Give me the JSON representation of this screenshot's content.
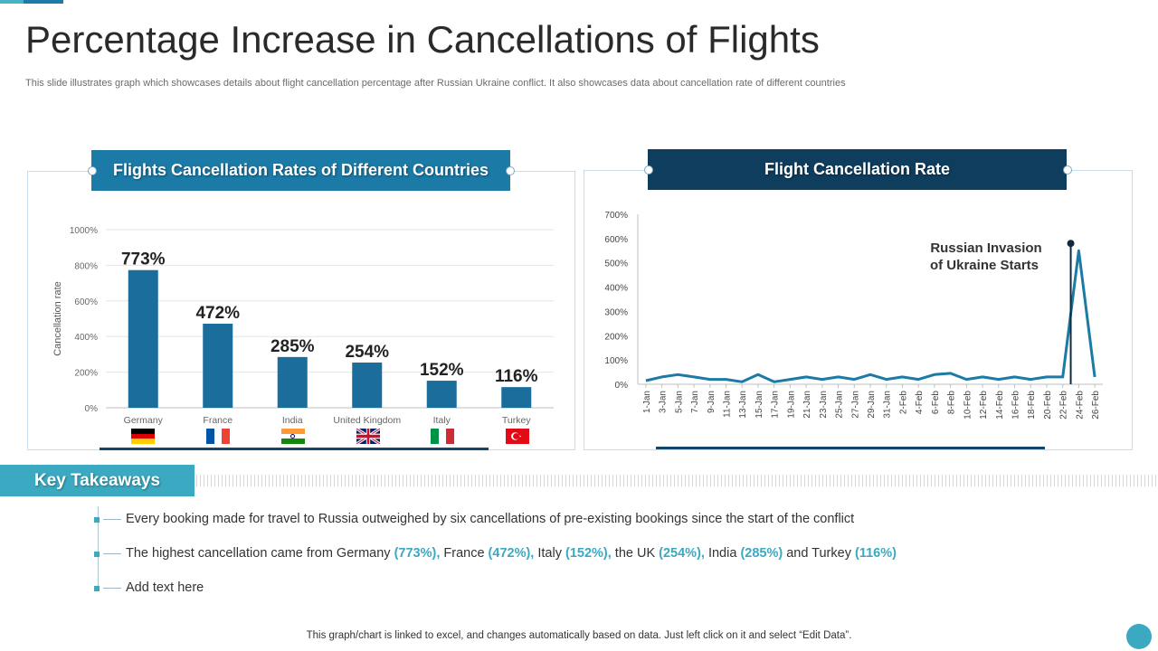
{
  "title": "Percentage Increase in Cancellations of Flights",
  "subtitle": "This slide illustrates graph which showcases details about flight cancellation percentage after Russian Ukraine conflict. It also showcases data about cancellation rate of different countries",
  "left_panel": {
    "header": "Flights Cancellation Rates of Different Countries"
  },
  "right_panel": {
    "header": "Flight Cancellation Rate",
    "annotation_line1": "Russian Invasion",
    "annotation_line2": "of Ukraine Starts"
  },
  "takeaways": {
    "header": "Key Takeaways",
    "item1": "Every booking made for travel to Russia outweighed by six cancellations of pre-existing bookings since the start of the conflict",
    "item2_parts": {
      "p1": "The highest cancellation came from Germany ",
      "h1": "(773%),",
      "p2": " France ",
      "h2": "(472%),",
      "p3": " Italy  ",
      "h3": "(152%),",
      "p4": " the UK ",
      "h4": "(254%),",
      "p5": " India  ",
      "h5": "(285%)",
      "p6": " and Turkey ",
      "h6": "(116%)"
    },
    "item3": "Add text here"
  },
  "footer": "This graph/chart is linked to excel,  and changes automatically based on data. Just left click on it and select “Edit Data”.",
  "colors": {
    "bar": "#1b6e9c",
    "line": "#1b7aa6",
    "accent": "#3aa9c1",
    "dark": "#0f3d5e"
  },
  "flags": [
    "germany-flag-icon",
    "france-flag-icon",
    "india-flag-icon",
    "uk-flag-icon",
    "italy-flag-icon",
    "turkey-flag-icon"
  ],
  "chart_data": [
    {
      "type": "bar",
      "title": "Flights Cancellation Rates of Different Countries",
      "ylabel": "Cancellation rate",
      "xlabel": "",
      "categories": [
        "Germany",
        "France",
        "India",
        "United Kingdom",
        "Italy",
        "Turkey"
      ],
      "values": [
        773,
        472,
        285,
        254,
        152,
        116
      ],
      "data_labels": [
        "773%",
        "472%",
        "285%",
        "254%",
        "152%",
        "116%"
      ],
      "ylim": [
        0,
        1000
      ],
      "yticks": [
        "0%",
        "200%",
        "400%",
        "600%",
        "800%",
        "1000%"
      ],
      "ytick_values": [
        0,
        200,
        400,
        600,
        800,
        1000
      ],
      "grid": true
    },
    {
      "type": "line",
      "title": "Flight Cancellation Rate",
      "ylim": [
        0,
        700
      ],
      "yticks": [
        "0%",
        "100%",
        "200%",
        "300%",
        "400%",
        "500%",
        "600%",
        "700%"
      ],
      "ytick_values": [
        0,
        100,
        200,
        300,
        400,
        500,
        600,
        700
      ],
      "x_labels": [
        "1-Jan",
        "3-Jan",
        "5-Jan",
        "7-Jan",
        "9-Jan",
        "11-Jan",
        "13-Jan",
        "15-Jan",
        "17-Jan",
        "19-Jan",
        "21-Jan",
        "23-Jan",
        "25-Jan",
        "27-Jan",
        "29-Jan",
        "31-Jan",
        "2-Feb",
        "4-Feb",
        "6-Feb",
        "8-Feb",
        "10-Feb",
        "12-Feb",
        "14-Feb",
        "16-Feb",
        "18-Feb",
        "20-Feb",
        "22-Feb",
        "24-Feb",
        "26-Feb"
      ],
      "values": [
        15,
        30,
        40,
        30,
        20,
        20,
        10,
        40,
        10,
        20,
        30,
        20,
        30,
        20,
        40,
        20,
        30,
        20,
        40,
        45,
        20,
        30,
        20,
        30,
        20,
        30,
        30,
        550,
        30
      ],
      "annotation": {
        "text": "Russian Invasion of Ukraine Starts",
        "x_label": "23-Feb",
        "marker_value": 580
      },
      "grid": false
    }
  ]
}
